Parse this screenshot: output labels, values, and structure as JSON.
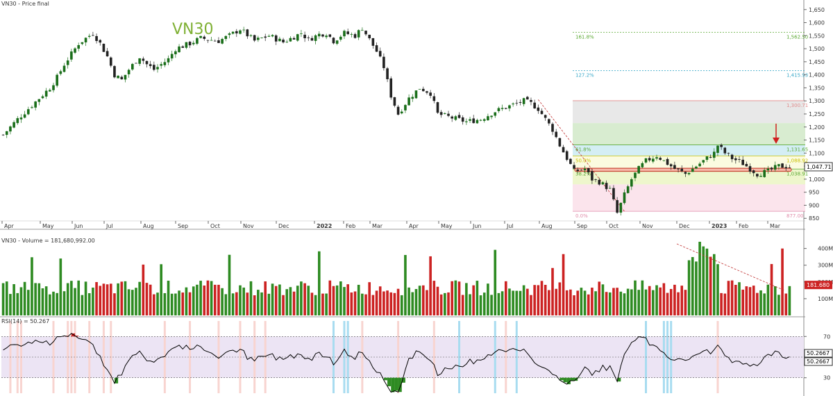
{
  "panels": {
    "price_title": "VN30 - Price final",
    "volume_title": "VN30 - Volume = 181,680,992.00",
    "rsi_title": "RSI(14) = 50.267"
  },
  "watermark": "VN30",
  "colors": {
    "up": "#2e8b22",
    "down": "#cc2222",
    "rsi_line": "#000000",
    "rsi_band": "#ece4f4",
    "highlight_blue": "#a8dcf0",
    "highlight_pink": "#f8d4d0"
  },
  "chart_data": [
    {
      "type": "candlestick",
      "title": "VN30 - Price final",
      "ylim": [
        840,
        1660
      ],
      "y_ticks": [
        "850",
        "900",
        "950",
        "1,000",
        "1,050",
        "1,100",
        "1,150",
        "1,200",
        "1,250",
        "1,300",
        "1,350",
        "1,400",
        "1,450",
        "1,500",
        "1,550",
        "1,600",
        "1,650"
      ],
      "x_ticks": [
        "Apr",
        "May",
        "Jun",
        "Jul",
        "Aug",
        "Sep",
        "Oct",
        "Nov",
        "Dec",
        "2022",
        "Feb",
        "Mar",
        "Apr",
        "May",
        "Jun",
        "Jul",
        "Aug",
        "Sep",
        "Oct",
        "Nov",
        "Dec",
        "2023",
        "Feb",
        "Mar"
      ],
      "last_value_label": "1,047.71",
      "close_path": [
        [
          0,
          1170
        ],
        [
          4,
          1230
        ],
        [
          7,
          1270
        ],
        [
          10,
          1310
        ],
        [
          13,
          1350
        ],
        [
          15,
          1390
        ],
        [
          17,
          1440
        ],
        [
          19,
          1480
        ],
        [
          21,
          1520
        ],
        [
          23,
          1540
        ],
        [
          25,
          1560
        ],
        [
          27,
          1520
        ],
        [
          29,
          1470
        ],
        [
          31,
          1400
        ],
        [
          33,
          1380
        ],
        [
          35,
          1420
        ],
        [
          38,
          1470
        ],
        [
          40,
          1440
        ],
        [
          42,
          1420
        ],
        [
          44,
          1440
        ],
        [
          46,
          1460
        ],
        [
          48,
          1500
        ],
        [
          52,
          1520
        ],
        [
          55,
          1540
        ],
        [
          60,
          1530
        ],
        [
          63,
          1550
        ],
        [
          66,
          1575
        ],
        [
          70,
          1530
        ],
        [
          74,
          1550
        ],
        [
          78,
          1525
        ],
        [
          83,
          1560
        ],
        [
          85,
          1535
        ],
        [
          88,
          1555
        ],
        [
          90,
          1560
        ],
        [
          92,
          1530
        ],
        [
          95,
          1560
        ],
        [
          98,
          1550
        ],
        [
          100,
          1580
        ],
        [
          104,
          1490
        ],
        [
          106,
          1430
        ],
        [
          108,
          1320
        ],
        [
          110,
          1250
        ],
        [
          113,
          1310
        ],
        [
          116,
          1350
        ],
        [
          119,
          1330
        ],
        [
          121,
          1250
        ],
        [
          125,
          1235
        ],
        [
          129,
          1220
        ],
        [
          133,
          1230
        ],
        [
          137,
          1260
        ],
        [
          141,
          1280
        ],
        [
          145,
          1300
        ],
        [
          147,
          1290
        ],
        [
          149,
          1270
        ],
        [
          151,
          1230
        ],
        [
          153,
          1190
        ],
        [
          155,
          1130
        ],
        [
          157,
          1080
        ],
        [
          159,
          1030
        ],
        [
          162,
          1040
        ],
        [
          164,
          1000
        ],
        [
          166,
          990
        ],
        [
          169,
          960
        ],
        [
          171,
          870
        ],
        [
          173,
          940
        ],
        [
          175,
          1000
        ],
        [
          177,
          1040
        ],
        [
          179,
          1070
        ],
        [
          182,
          1090
        ],
        [
          185,
          1060
        ],
        [
          187,
          1040
        ],
        [
          190,
          1020
        ],
        [
          193,
          1050
        ],
        [
          196,
          1080
        ],
        [
          198,
          1100
        ],
        [
          199,
          1130
        ],
        [
          201,
          1100
        ],
        [
          203,
          1080
        ],
        [
          206,
          1060
        ],
        [
          208,
          1040
        ],
        [
          210,
          1020
        ],
        [
          213,
          1030
        ],
        [
          216,
          1050
        ],
        [
          219,
          1048
        ]
      ],
      "fibonacci": {
        "range": [
          877,
          1310
        ],
        "levels": [
          {
            "label": "161.8%",
            "value_label": "1,562.50",
            "value": 1562.5
          },
          {
            "label": "127.2%",
            "value_label": "1,415.93",
            "value": 1415.93
          },
          {
            "label": "",
            "value_label": "1,300.71",
            "value": 1300.71
          },
          {
            "label": "61.8%",
            "value_label": "1,131.65",
            "value": 1131.65
          },
          {
            "label": "50.0%",
            "value_label": "1,088.92",
            "value": 1088.92
          },
          {
            "label": "38.2%",
            "value_label": "1,038.91",
            "value": 1038.91
          },
          {
            "label": "0.0%",
            "value_label": "877.00",
            "value": 877
          }
        ]
      },
      "support_zone": [
        1030,
        1042
      ]
    },
    {
      "type": "bar",
      "title": "VN30 - Volume = 181,680,992.00",
      "y_ticks": [
        "100M",
        "200M",
        "300M",
        "400M"
      ],
      "last_value_label": "181.680"
    },
    {
      "type": "line",
      "title": "RSI(14) = 50.267",
      "ylim": [
        15,
        85
      ],
      "y_ticks": [
        "30",
        "50",
        "70"
      ],
      "bands": [
        30,
        50,
        70
      ],
      "last_value_labels": [
        "50.2667",
        "50.2667"
      ]
    }
  ]
}
